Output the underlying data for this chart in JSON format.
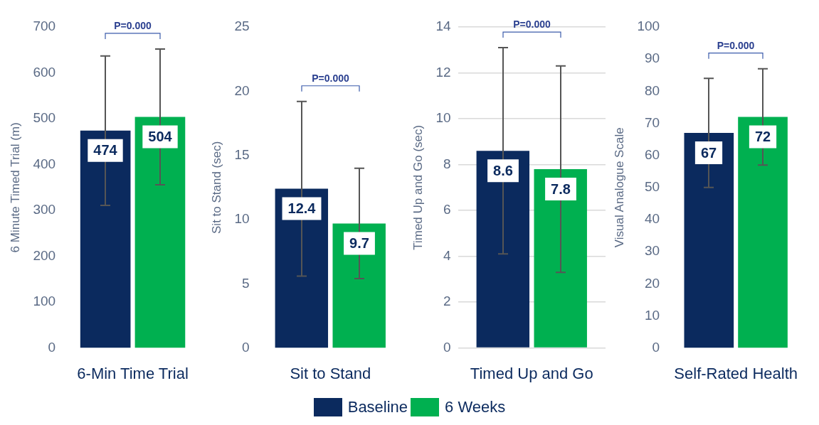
{
  "chart_data": [
    {
      "type": "bar",
      "categories": [
        "6-Min Time Trial"
      ],
      "ylabel": "6 Minute Timed Trial (m)",
      "ylim": [
        0,
        700
      ],
      "yticks": [
        0,
        100,
        200,
        300,
        400,
        500,
        600,
        700
      ],
      "grid": false,
      "legend": "bottom",
      "data_labels": true,
      "annotations": [
        "P=0.000"
      ],
      "series": [
        {
          "name": "Baseline",
          "color": "#0b2a5e",
          "values": [
            474
          ],
          "errors": [
            163
          ]
        },
        {
          "name": "6 Weeks",
          "color": "#00b050",
          "values": [
            504
          ],
          "errors": [
            148
          ]
        }
      ]
    },
    {
      "type": "bar",
      "categories": [
        "Sit to Stand"
      ],
      "ylabel": "Sit to Stand (sec)",
      "ylim": [
        0,
        25
      ],
      "yticks": [
        0,
        5,
        10,
        15,
        20,
        25
      ],
      "grid": false,
      "data_labels": true,
      "annotations": [
        "P=0.000"
      ],
      "series": [
        {
          "color": "#0b2a5e",
          "values": [
            12.4
          ],
          "errors": [
            6.8
          ]
        },
        {
          "color": "#00b050",
          "values": [
            9.7
          ],
          "errors": [
            4.3
          ]
        }
      ]
    },
    {
      "type": "bar",
      "categories": [
        "Timed Up and Go"
      ],
      "ylabel": "Timed Up and Go (sec)",
      "ylim": [
        0,
        14
      ],
      "yticks": [
        0,
        2,
        4,
        6,
        8,
        10,
        12,
        14
      ],
      "grid": "y",
      "data_labels": true,
      "annotations": [
        "P=0.000"
      ],
      "series": [
        {
          "color": "#0b2a5e",
          "values": [
            8.6
          ],
          "errors": [
            4.5
          ]
        },
        {
          "color": "#00b050",
          "values": [
            7.8
          ],
          "errors": [
            4.5
          ]
        }
      ]
    },
    {
      "type": "bar",
      "categories": [
        "Self-Rated Health"
      ],
      "ylabel": "Visual Analogue Scale",
      "ylim": [
        0,
        100
      ],
      "yticks": [
        0,
        10,
        20,
        30,
        40,
        50,
        60,
        70,
        80,
        90,
        100
      ],
      "grid": false,
      "data_labels": true,
      "annotations": [
        "P=0.000"
      ],
      "series": [
        {
          "color": "#0b2a5e",
          "values": [
            67
          ],
          "errors": [
            17
          ]
        },
        {
          "color": "#00b050",
          "values": [
            72
          ],
          "errors": [
            15
          ]
        }
      ]
    }
  ]
}
